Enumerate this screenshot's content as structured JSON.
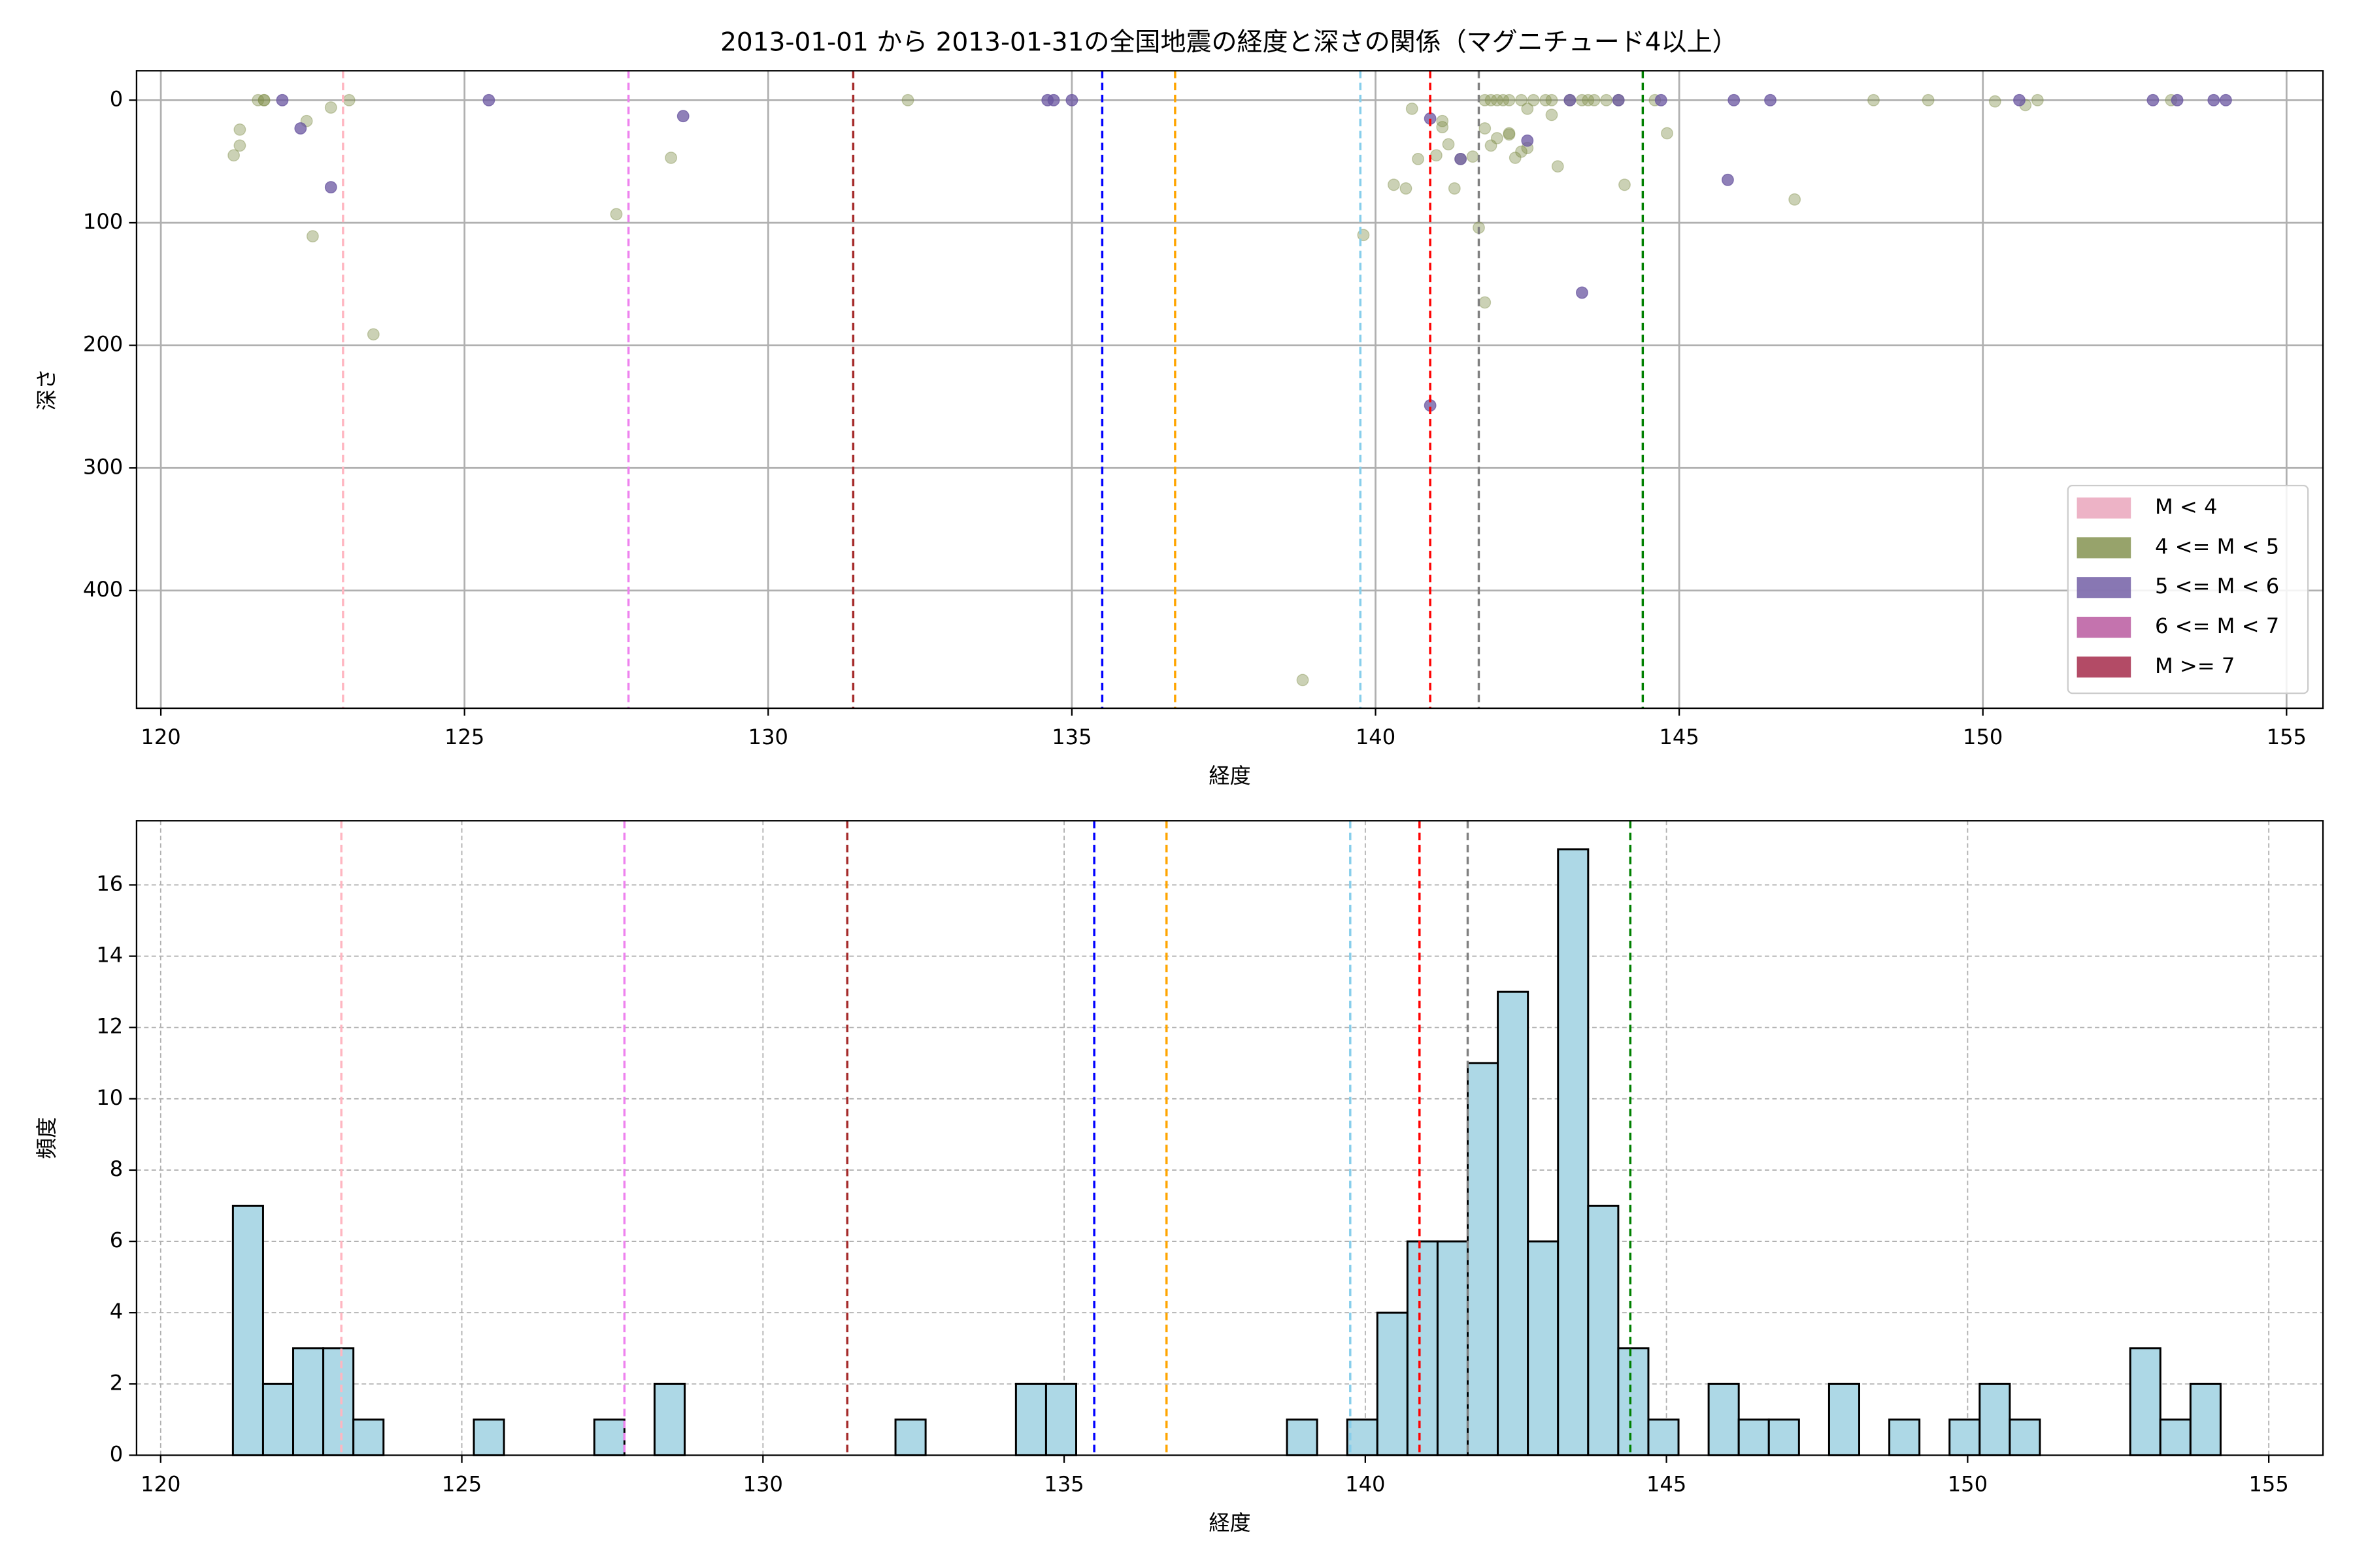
{
  "chart_data": [
    {
      "type": "scatter",
      "title": "2013-01-01 から 2013-01-31の全国地震の経度と深さの関係（マグニチュード4以上）",
      "xlabel": "経度",
      "ylabel": "深さ",
      "xlim": [
        119.6,
        155.6
      ],
      "ylim": [
        -24,
        496
      ],
      "y_inverted": true,
      "xticks": [
        120,
        125,
        130,
        135,
        140,
        145,
        150,
        155
      ],
      "yticks": [
        0,
        100,
        200,
        300,
        400
      ],
      "grid": true,
      "grid_style": "solid",
      "legend": "lower right",
      "vlines": [
        {
          "x": 123.0,
          "color": "#ffb6c1"
        },
        {
          "x": 127.7,
          "color": "#ee82ee"
        },
        {
          "x": 131.4,
          "color": "#a52a2a"
        },
        {
          "x": 135.5,
          "color": "#0000ff"
        },
        {
          "x": 136.7,
          "color": "#ffa500"
        },
        {
          "x": 139.75,
          "color": "#87ceeb"
        },
        {
          "x": 140.9,
          "color": "#ff0000"
        },
        {
          "x": 141.7,
          "color": "#808080"
        },
        {
          "x": 144.4,
          "color": "#008000"
        }
      ],
      "series": [
        {
          "name": "M < 4",
          "color": "#e8a0b8",
          "alpha": 0.6,
          "x": [],
          "y": []
        },
        {
          "name": "4 <= M < 5",
          "color": "#7d8c46",
          "alpha": 0.4,
          "x": [
            121.2,
            121.3,
            121.3,
            121.6,
            121.7,
            121.7,
            122.4,
            122.5,
            122.8,
            123.1,
            123.5,
            127.5,
            128.4,
            132.3,
            138.8,
            139.8,
            140.3,
            140.5,
            140.6,
            140.7,
            141.0,
            141.1,
            141.1,
            141.2,
            141.3,
            141.4,
            141.6,
            141.7,
            141.8,
            141.8,
            141.9,
            142.0,
            142.1,
            142.2,
            142.4,
            142.6,
            142.8,
            142.9,
            141.8,
            141.9,
            142.0,
            142.2,
            142.2,
            142.3,
            142.4,
            142.5,
            142.5,
            142.9,
            143.0,
            143.2,
            143.4,
            143.5,
            143.6,
            143.8,
            144.0,
            144.1,
            144.6,
            144.8,
            146.9,
            148.2,
            149.1,
            150.2,
            150.7,
            150.9,
            153.1
          ],
          "y": [
            45,
            37,
            24,
            0,
            0,
            0,
            17,
            111,
            6,
            0,
            191,
            93,
            47,
            0,
            473,
            110,
            69,
            72,
            7,
            48,
            45,
            17,
            22,
            36,
            72,
            48,
            46,
            104,
            0,
            165,
            0,
            0,
            0,
            0,
            0,
            0,
            0,
            0,
            23,
            37,
            31,
            28,
            27,
            47,
            42,
            39,
            7,
            12,
            54,
            0,
            0,
            0,
            0,
            0,
            0,
            69,
            0,
            27,
            81,
            0,
            0,
            1,
            4,
            0,
            0
          ]
        },
        {
          "name": "5 <= M < 6",
          "color": "#6a55a0",
          "alpha": 0.75,
          "x": [
            122.0,
            122.3,
            122.8,
            125.4,
            128.6,
            134.6,
            134.7,
            135.0,
            140.9,
            140.9,
            141.4,
            142.5,
            143.2,
            143.4,
            144.0,
            144.7,
            145.8,
            145.9,
            146.5,
            150.6,
            152.8,
            153.2,
            153.8,
            154.0
          ],
          "y": [
            0,
            23,
            71,
            0,
            13,
            0,
            0,
            0,
            15,
            249,
            48,
            33,
            0,
            157,
            0,
            0,
            65,
            0,
            0,
            0,
            0,
            0,
            0,
            0
          ]
        },
        {
          "name": "6 <= M < 7",
          "color": "#b5509a",
          "alpha": 0.75,
          "x": [],
          "y": []
        },
        {
          "name": "M >= 7",
          "color": "#a01e40",
          "alpha": 0.75,
          "x": [],
          "y": []
        }
      ]
    },
    {
      "type": "histogram",
      "xlabel": "経度",
      "ylabel": "頻度",
      "xlim": [
        119.6,
        155.9
      ],
      "ylim": [
        0,
        17.8
      ],
      "xticks": [
        120,
        125,
        130,
        135,
        140,
        145,
        150,
        155
      ],
      "yticks": [
        0,
        2,
        4,
        6,
        8,
        10,
        12,
        14,
        16
      ],
      "grid": true,
      "grid_style": "dashed",
      "color": "#add8e6",
      "edgecolor": "#000000",
      "vlines": [
        {
          "x": 123.0,
          "color": "#ffb6c1"
        },
        {
          "x": 127.7,
          "color": "#ee82ee"
        },
        {
          "x": 131.4,
          "color": "#a52a2a"
        },
        {
          "x": 135.5,
          "color": "#0000ff"
        },
        {
          "x": 136.7,
          "color": "#ffa500"
        },
        {
          "x": 139.75,
          "color": "#87ceeb"
        },
        {
          "x": 140.9,
          "color": "#ff0000"
        },
        {
          "x": 141.7,
          "color": "#808080"
        },
        {
          "x": 144.4,
          "color": "#008000"
        }
      ],
      "bins": [
        121.2,
        121.7,
        122.2,
        122.7,
        123.2,
        123.7,
        124.2,
        124.7,
        125.2,
        125.7,
        126.2,
        126.7,
        127.2,
        127.7,
        128.2,
        128.7,
        129.2,
        129.7,
        130.2,
        130.7,
        131.2,
        131.7,
        132.2,
        132.7,
        133.2,
        133.7,
        134.2,
        134.7,
        135.2,
        135.7,
        136.2,
        136.7,
        137.2,
        137.7,
        138.2,
        138.7,
        139.2,
        139.7,
        140.2,
        140.7,
        141.2,
        141.7,
        142.2,
        142.7,
        143.2,
        143.7,
        144.2,
        144.7,
        145.2,
        145.7,
        146.2,
        146.7,
        147.2,
        147.7,
        148.2,
        148.7,
        149.2,
        149.7,
        150.2,
        150.7,
        151.2,
        151.7,
        152.2,
        152.7,
        153.2,
        153.7,
        154.2
      ],
      "values": [
        7,
        2,
        3,
        3,
        1,
        0,
        0,
        0,
        1,
        0,
        0,
        0,
        1,
        0,
        2,
        0,
        0,
        0,
        0,
        0,
        0,
        0,
        1,
        0,
        0,
        0,
        2,
        2,
        0,
        0,
        0,
        0,
        0,
        0,
        0,
        1,
        0,
        1,
        4,
        6,
        6,
        11,
        13,
        6,
        17,
        7,
        3,
        1,
        0,
        2,
        1,
        1,
        0,
        2,
        0,
        1,
        0,
        1,
        2,
        1,
        0,
        0,
        0,
        3,
        1,
        2
      ]
    }
  ]
}
